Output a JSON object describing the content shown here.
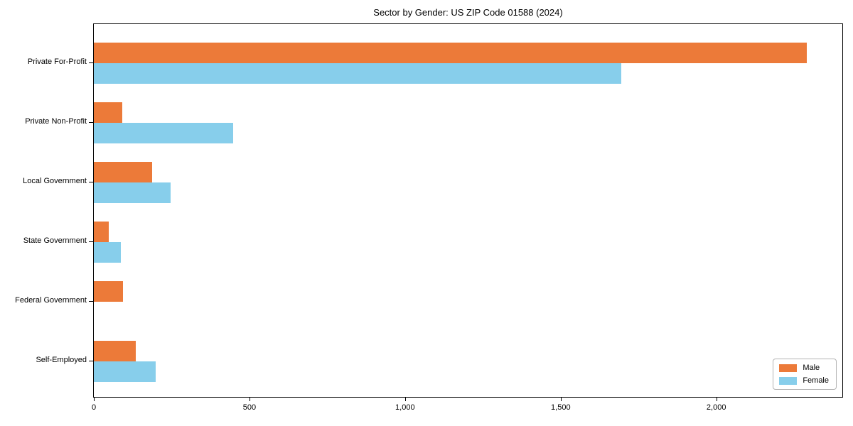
{
  "chart_data": {
    "type": "bar",
    "orientation": "horizontal",
    "title": "Sector by Gender: US ZIP Code 01588 (2024)",
    "xlabel": "",
    "ylabel": "",
    "categories": [
      "Private For-Profit",
      "Private Non-Profit",
      "Local Government",
      "State Government",
      "Federal Government",
      "Self-Employed"
    ],
    "series": [
      {
        "name": "Male",
        "color": "#ec7a39",
        "values": [
          2290,
          91,
          187,
          48,
          94,
          134
        ]
      },
      {
        "name": "Female",
        "color": "#87ceeb",
        "values": [
          1694,
          447,
          246,
          87,
          0,
          198
        ]
      }
    ],
    "xlim": [
      0,
      2405
    ],
    "xticks": [
      0,
      500,
      1000,
      1500,
      2000
    ],
    "xtick_labels": [
      "0",
      "500",
      "1,000",
      "1,500",
      "2,000"
    ],
    "grid": false,
    "legend_position": "lower right",
    "axis_color": "#000000",
    "background_color": "#ffffff"
  }
}
